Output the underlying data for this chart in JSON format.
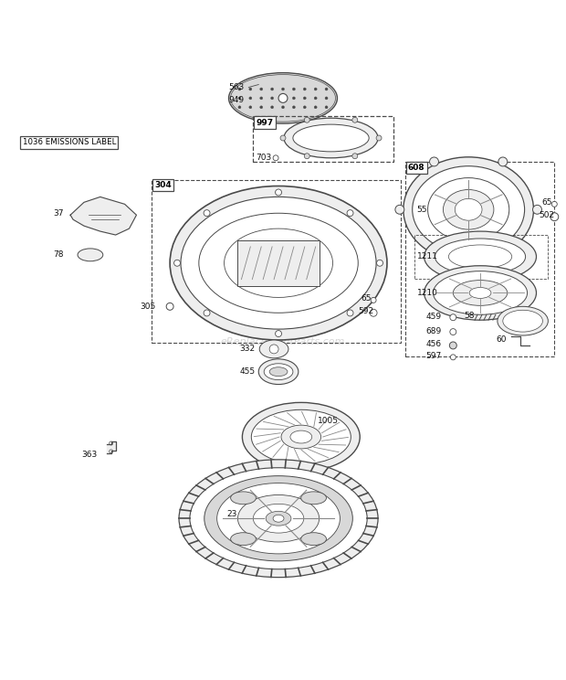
{
  "bg_color": "#ffffff",
  "watermark": "eReplacementParts.com",
  "fig_w": 6.2,
  "fig_h": 7.44,
  "dpi": 100,
  "gray": "#4a4a4a",
  "lgray": "#888888",
  "fillgray": "#d8d8d8",
  "filllgray": "#eeeeee"
}
